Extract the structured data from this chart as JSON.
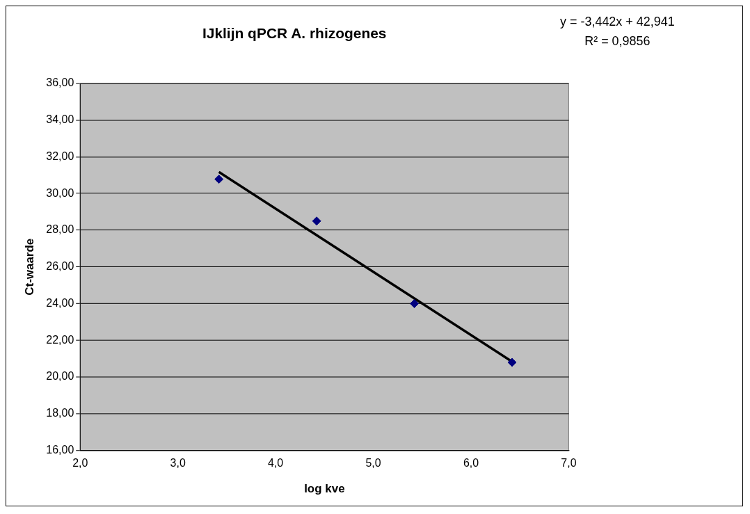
{
  "chart_data": {
    "type": "scatter",
    "title": "IJklijn qPCR A. rhizogenes",
    "xlabel": "log kve",
    "ylabel": "Ct-waarde",
    "annotations": [
      "y = -3,442x + 42,941",
      "R² = 0,9856"
    ],
    "series": [
      {
        "type": "scatter",
        "color": "#000080",
        "x": [
          3.42,
          4.42,
          5.42,
          6.42
        ],
        "values": [
          30.78,
          28.5,
          24.0,
          20.8
        ],
        "marker": "diamond"
      },
      {
        "type": "line",
        "color": "#000000",
        "x": [
          3.42,
          6.42
        ],
        "values": [
          31.17,
          20.84
        ],
        "marker": "none"
      }
    ],
    "xlim": [
      2,
      7
    ],
    "xticks": [
      {
        "value": 2,
        "label": "2,0"
      },
      {
        "value": 3,
        "label": "3,0"
      },
      {
        "value": 4,
        "label": "4,0"
      },
      {
        "value": 5,
        "label": "5,0"
      },
      {
        "value": 6,
        "label": "6,0"
      },
      {
        "value": 7,
        "label": "7,0"
      }
    ],
    "ylim": [
      16,
      36
    ],
    "yticks": [
      {
        "value": 16,
        "label": "16,00"
      },
      {
        "value": 18,
        "label": "18,00"
      },
      {
        "value": 20,
        "label": "20,00"
      },
      {
        "value": 22,
        "label": "22,00"
      },
      {
        "value": 24,
        "label": "24,00"
      },
      {
        "value": 26,
        "label": "26,00"
      },
      {
        "value": 28,
        "label": "28,00"
      },
      {
        "value": 30,
        "label": "30,00"
      },
      {
        "value": 32,
        "label": "32,00"
      },
      {
        "value": 34,
        "label": "34,00"
      },
      {
        "value": 36,
        "label": "36,00"
      }
    ],
    "grid": "y",
    "legend": false
  }
}
